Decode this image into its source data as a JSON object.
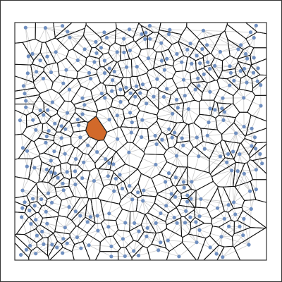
{
  "figure": {
    "colors": {
      "background": "#ffffff",
      "frame": "#333333",
      "voronoi_edges": "#111111",
      "delaunay_edges": "#cccccc",
      "site_fill": "#6f8fc0",
      "highlight_fill": "#d2692a",
      "highlight_stroke": "#222222"
    },
    "site_count": 320,
    "random_seed": 7
  }
}
